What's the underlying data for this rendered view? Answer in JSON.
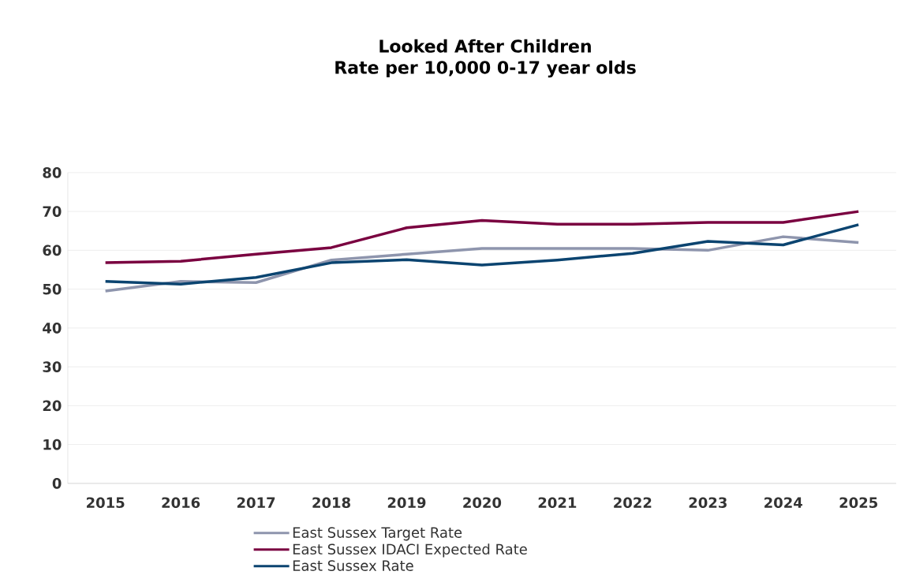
{
  "chart_data": {
    "type": "line",
    "title": "Looked After Children",
    "subtitle": "Rate per 10,000 0-17 year olds",
    "categories": [
      "2015",
      "2016",
      "2017",
      "2018",
      "2019",
      "2020",
      "2021",
      "2022",
      "2023",
      "2024",
      "2025"
    ],
    "series": [
      {
        "name": "East Sussex Target Rate",
        "color": "#8e95ad",
        "values": [
          49.5,
          52,
          51.7,
          57.5,
          59,
          60.5,
          60.5,
          60.5,
          60,
          63.5,
          62
        ]
      },
      {
        "name": "East Sussex IDACI Expected Rate",
        "color": "#7a0040",
        "values": [
          56.8,
          57.2,
          59,
          60.7,
          65.8,
          67.7,
          66.7,
          66.7,
          67.2,
          67.2,
          70
        ]
      },
      {
        "name": "East Sussex Rate",
        "color": "#0b4470",
        "values": [
          52,
          51.3,
          53,
          56.8,
          57.6,
          56.2,
          57.5,
          59.2,
          62.3,
          61.4,
          66.6
        ]
      }
    ],
    "ylim": [
      0,
      80
    ],
    "yticks": [
      0,
      10,
      20,
      30,
      40,
      50,
      60,
      70,
      80
    ],
    "grid": "y",
    "legend": "bottom",
    "marker": "none",
    "line_style": "solid"
  }
}
